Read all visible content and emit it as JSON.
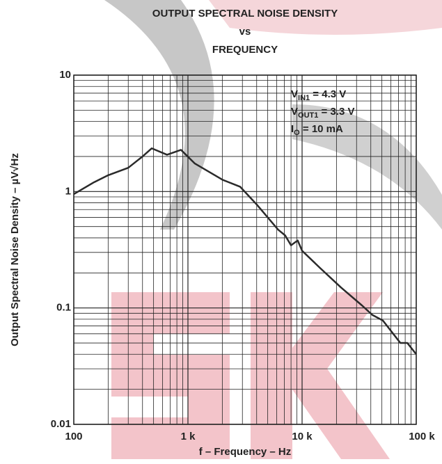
{
  "chart_data": {
    "type": "line",
    "title": [
      "OUTPUT SPECTRAL NOISE DENSITY",
      "vs",
      "FREQUENCY"
    ],
    "x_label": "f – Frequency – Hz",
    "y_label": "Output Spectral Noise Density –  µV√Hz",
    "x_scale": "log",
    "y_scale": "log",
    "grid": true,
    "xlim": [
      100,
      100000
    ],
    "ylim": [
      0.01,
      10
    ],
    "xticks": [
      {
        "value": 100,
        "label": "100"
      },
      {
        "value": 1000,
        "label": "1 k"
      },
      {
        "value": 10000,
        "label": "10 k"
      },
      {
        "value": 100000,
        "label": "100 k"
      }
    ],
    "yticks": [
      0.01,
      0.1,
      1,
      10
    ],
    "annotations": [
      {
        "main": "V",
        "sub": "IN1",
        "rest": " = 4.3 V"
      },
      {
        "main": "V",
        "sub": "OUT1",
        "rest": " = 3.3 V"
      },
      {
        "main": "I",
        "sub": "O",
        "rest": " = 10 mA"
      }
    ],
    "series": [
      {
        "color": "#2a2a2a",
        "x": [
          100,
          150,
          200,
          300,
          400,
          482,
          656,
          869,
          1150,
          2017,
          2864,
          4070,
          6170,
          7100,
          8000,
          9150,
          10000,
          14400,
          21900,
          33500,
          41300,
          51000,
          72600,
          83600,
          100000
        ],
        "values": [
          0.95,
          1.2,
          1.38,
          1.6,
          2.0,
          2.35,
          2.07,
          2.28,
          1.74,
          1.26,
          1.1,
          0.76,
          0.47,
          0.42,
          0.345,
          0.38,
          0.31,
          0.22,
          0.15,
          0.105,
          0.087,
          0.078,
          0.05,
          0.05,
          0.04
        ]
      }
    ]
  }
}
